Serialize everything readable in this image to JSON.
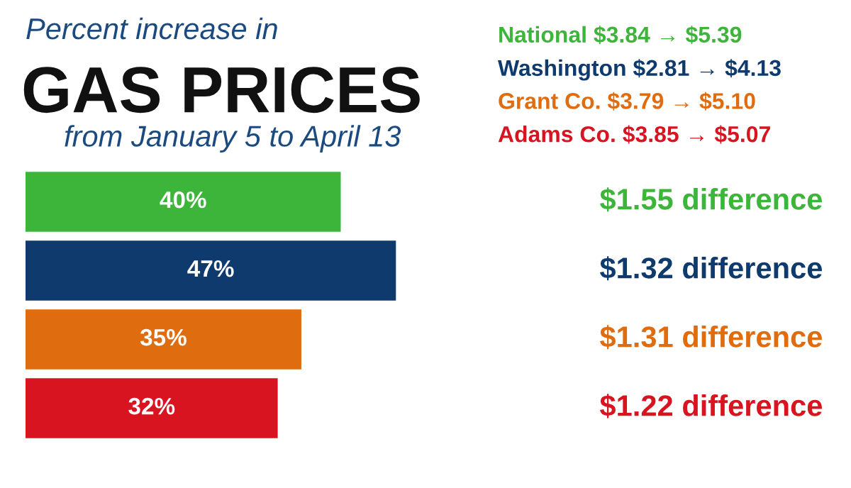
{
  "chart_data": {
    "type": "bar",
    "orientation": "horizontal",
    "relative": false,
    "title": "GAS PRICES",
    "subtitle": "from January 5 to April 13",
    "categories": [
      null,
      null,
      null,
      null
    ],
    "values": [
      40,
      47,
      35,
      32
    ],
    "colors": [
      "#3db53a",
      "#0e3a6d",
      "#e06c10",
      "#d7141f"
    ],
    "value_labels": [
      "40%",
      "47%",
      "35%",
      "32%"
    ],
    "tick_labels": false,
    "grid": false,
    "annotations": [
      "Percent increase in",
      "National $3.84 → $5.39",
      "Washington $2.81 → $4.13",
      "Grant Co. $3.79 → $5.10",
      "Adams Co. $3.85 → $5.07",
      "$1.55 difference",
      "$1.32 difference",
      "$1.31 difference",
      "$1.22 difference"
    ]
  }
}
